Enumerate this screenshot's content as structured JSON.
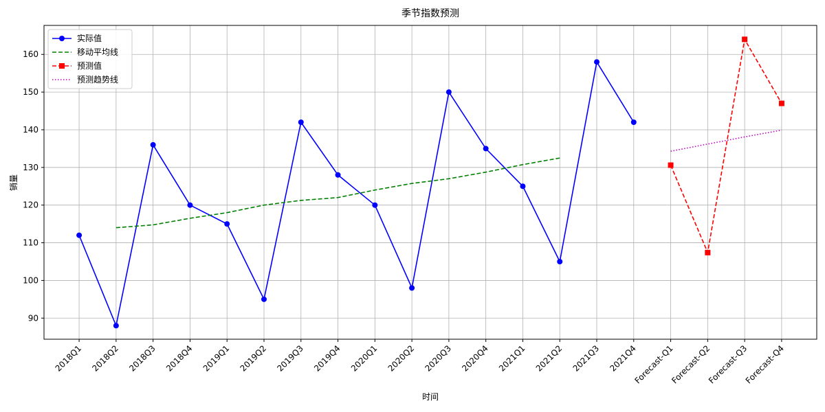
{
  "chart_data": {
    "type": "line",
    "title": "季节指数预测",
    "x_label": "时间",
    "y_label": "销量",
    "categories": [
      "2018Q1",
      "2018Q2",
      "2018Q3",
      "2018Q4",
      "2019Q1",
      "2019Q2",
      "2019Q3",
      "2019Q4",
      "2020Q1",
      "2020Q2",
      "2020Q3",
      "2020Q4",
      "2021Q1",
      "2021Q2",
      "2021Q3",
      "2021Q4",
      "Forecast-Q1",
      "Forecast-Q2",
      "Forecast-Q3",
      "Forecast-Q4"
    ],
    "series": [
      {
        "name": "实际值",
        "color": "#0000ff",
        "line_style": "solid",
        "marker": "circle",
        "values": [
          112,
          88,
          136,
          120,
          115,
          95,
          142,
          128,
          120,
          98,
          150,
          135,
          125,
          105,
          158,
          142,
          null,
          null,
          null,
          null
        ]
      },
      {
        "name": "移动平均线",
        "color": "#008000",
        "line_style": "dashed",
        "marker": "none",
        "values": [
          null,
          114,
          114.75,
          116.5,
          118,
          120,
          121.25,
          122,
          124,
          125.75,
          127,
          128.75,
          130.75,
          132.5,
          null,
          null,
          null,
          null,
          null,
          null
        ]
      },
      {
        "name": "预测值",
        "color": "#ff0000",
        "line_style": "dashed",
        "marker": "square",
        "values": [
          null,
          null,
          null,
          null,
          null,
          null,
          null,
          null,
          null,
          null,
          null,
          null,
          null,
          null,
          null,
          null,
          130.6,
          107.4,
          164,
          147
        ]
      },
      {
        "name": "预测趋势线",
        "color": "#bf00bf",
        "line_style": "dotted",
        "marker": "none",
        "values": [
          null,
          null,
          null,
          null,
          null,
          null,
          null,
          null,
          null,
          null,
          null,
          null,
          null,
          null,
          null,
          null,
          134.3,
          136.2,
          138.1,
          139.9
        ]
      }
    ],
    "ylim": [
      84.4,
      167.7
    ],
    "yticks": [
      90,
      100,
      110,
      120,
      130,
      140,
      150,
      160
    ],
    "grid": true,
    "legend": "upper-left"
  }
}
